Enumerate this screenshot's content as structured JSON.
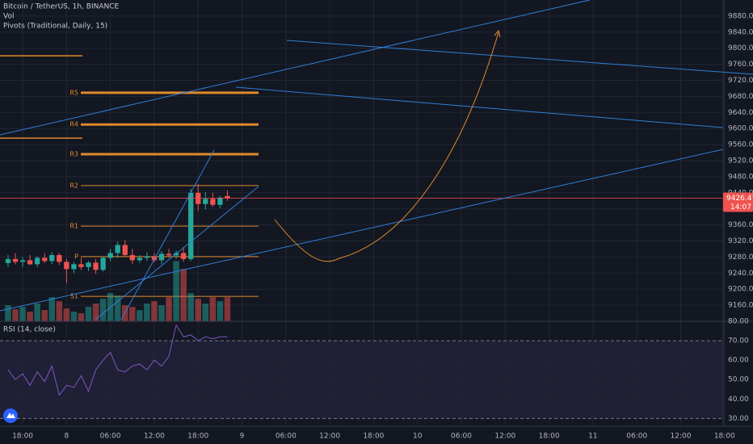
{
  "chart_data": {
    "type": "candlestick",
    "title": "Bitcoin / TetherUS, 1h, BINANCE",
    "volume_label": "Vol",
    "pivots_label": "Pivots (Traditional, Daily, 15)",
    "rsi_label": "RSI (14, close)",
    "countdown": "14:07",
    "up_color": "#26a69a",
    "down_color": "#ef5350",
    "pivot_color": "#e08a2c",
    "rsi_color": "#7e57c2",
    "x": [
      -2,
      -1,
      0,
      1,
      2,
      3,
      4,
      5,
      6,
      7,
      8,
      9,
      10,
      11,
      12,
      13,
      14,
      15,
      16,
      17,
      18,
      19,
      20,
      21,
      22,
      23,
      24,
      25,
      26,
      27,
      28
    ],
    "open": [
      9265,
      9275,
      9268,
      9272,
      9262,
      9278,
      9270,
      9285,
      9268,
      9250,
      9262,
      9255,
      9266,
      9248,
      9278,
      9290,
      9310,
      9285,
      9272,
      9278,
      9282,
      9272,
      9288,
      9284,
      9290,
      9275,
      9440,
      9412,
      9425,
      9410,
      9432
    ],
    "high": [
      9285,
      9290,
      9280,
      9285,
      9282,
      9290,
      9292,
      9290,
      9275,
      9268,
      9278,
      9270,
      9275,
      9282,
      9300,
      9318,
      9322,
      9300,
      9285,
      9292,
      9290,
      9295,
      9300,
      9296,
      9305,
      9450,
      9462,
      9442,
      9440,
      9432,
      9446
    ],
    "low": [
      9255,
      9262,
      9255,
      9260,
      9255,
      9265,
      9262,
      9260,
      9215,
      9240,
      9248,
      9245,
      9238,
      9244,
      9270,
      9278,
      9280,
      9262,
      9265,
      9270,
      9266,
      9262,
      9278,
      9276,
      9268,
      9270,
      9395,
      9398,
      9405,
      9402,
      9420
    ],
    "close": [
      9275,
      9268,
      9272,
      9262,
      9278,
      9270,
      9285,
      9268,
      9250,
      9262,
      9255,
      9266,
      9248,
      9278,
      9290,
      9310,
      9285,
      9272,
      9278,
      9282,
      9272,
      9288,
      9284,
      9290,
      9275,
      9440,
      9412,
      9425,
      9410,
      9428,
      9426.47
    ],
    "volume": [
      20,
      15,
      18,
      12,
      22,
      14,
      30,
      25,
      16,
      12,
      10,
      18,
      22,
      28,
      35,
      32,
      20,
      18,
      14,
      22,
      25,
      20,
      30,
      75,
      65,
      35,
      28,
      22,
      30,
      25,
      30
    ],
    "volume_ylim": [
      0,
      400
    ],
    "rsi": [
      55,
      50,
      53,
      47,
      54,
      49,
      57,
      42,
      47,
      46,
      52,
      44,
      55,
      60,
      64,
      55,
      54,
      57,
      58,
      55,
      60,
      57,
      62,
      78,
      72,
      73,
      70,
      72,
      71,
      72,
      72
    ],
    "pivots": [
      {
        "name": "R5",
        "value": 9689
      },
      {
        "name": "R4",
        "value": 9610
      },
      {
        "name": "R3",
        "value": 9536
      },
      {
        "name": "R2",
        "value": 9458
      },
      {
        "name": "R1",
        "value": 9357
      },
      {
        "name": "P",
        "value": 9281
      },
      {
        "name": "S1",
        "value": 9182
      }
    ],
    "prev_pivots": [
      9781,
      9576
    ],
    "xlim": [
      -3.1,
      95.8
    ],
    "xticks": [
      {
        "value": 0,
        "label": "18:00"
      },
      {
        "value": 6,
        "label": "8"
      },
      {
        "value": 12,
        "label": "06:00"
      },
      {
        "value": 18,
        "label": "12:00"
      },
      {
        "value": 24,
        "label": "18:00"
      },
      {
        "value": 30,
        "label": "9"
      },
      {
        "value": 36,
        "label": "06:00"
      },
      {
        "value": 42,
        "label": "12:00"
      },
      {
        "value": 48,
        "label": "18:00"
      },
      {
        "value": 54,
        "label": "10"
      },
      {
        "value": 60,
        "label": "06:00"
      },
      {
        "value": 66,
        "label": "12:00"
      },
      {
        "value": 72,
        "label": "18:00"
      },
      {
        "value": 78,
        "label": "11"
      },
      {
        "value": 84,
        "label": "06:00"
      },
      {
        "value": 90,
        "label": "12:00"
      },
      {
        "value": 96,
        "label": "18:00"
      }
    ],
    "ylim": [
      9120,
      9920
    ],
    "yticks": [
      {
        "value": 9160,
        "label": "9160.00"
      },
      {
        "value": 9200,
        "label": "9200.00"
      },
      {
        "value": 9240,
        "label": "9240.00"
      },
      {
        "value": 9280,
        "label": "9280.00"
      },
      {
        "value": 9320,
        "label": "9320.00"
      },
      {
        "value": 9360,
        "label": "9360.00"
      },
      {
        "value": 9400,
        "label": "9400.00"
      },
      {
        "value": 9440,
        "label": "9440.00"
      },
      {
        "value": 9480,
        "label": "9480.00"
      },
      {
        "value": 9520,
        "label": "9520.00"
      },
      {
        "value": 9560,
        "label": "9560.00"
      },
      {
        "value": 9600,
        "label": "9600.00"
      },
      {
        "value": 9640,
        "label": "9640.00"
      },
      {
        "value": 9680,
        "label": "9680.00"
      },
      {
        "value": 9720,
        "label": "9720.00"
      },
      {
        "value": 9760,
        "label": "9760.00"
      },
      {
        "value": 9800,
        "label": "9800.00"
      },
      {
        "value": 9840,
        "label": "9840.00"
      },
      {
        "value": 9880,
        "label": "9880.00"
      }
    ],
    "rsi_ylim": [
      26,
      80
    ],
    "rsi_yticks": [
      {
        "value": 30,
        "label": "30.00"
      },
      {
        "value": 40,
        "label": "40.00"
      },
      {
        "value": 50,
        "label": "50.00"
      },
      {
        "value": 60,
        "label": "60.00"
      },
      {
        "value": 70,
        "label": "70.00"
      },
      {
        "value": 80,
        "label": "80.00"
      }
    ],
    "rsi_bands": [
      30,
      70
    ],
    "grid": true
  }
}
